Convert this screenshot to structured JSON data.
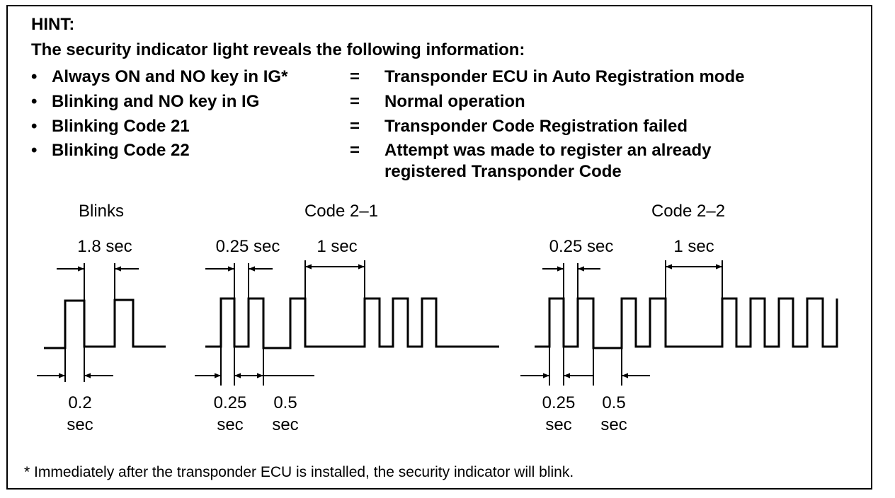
{
  "hint_label": "HINT:",
  "intro": "The security indicator light reveals the following information:",
  "bullet_char": "•",
  "rows": [
    {
      "condition": "Always ON and NO key in IG*",
      "eq": "=",
      "result": "Transponder ECU in Auto Registration mode"
    },
    {
      "condition": "Blinking and NO key in IG",
      "eq": "=",
      "result": "Normal operation"
    },
    {
      "condition": "Blinking Code 21",
      "eq": "=",
      "result": "Transponder Code Registration failed"
    },
    {
      "condition": "Blinking Code 22",
      "eq": "=",
      "result": "Attempt was made to register an already"
    }
  ],
  "row4_continuation": "registered Transponder Code",
  "diagram": {
    "blinks": {
      "title": "Blinks",
      "top_label": "1.8 sec",
      "bottom_label_1": "0.2",
      "bottom_label_2": "sec"
    },
    "code21": {
      "title": "Code 2–1",
      "top_label_a": "0.25 sec",
      "top_label_b": "1 sec",
      "bottom_a_1": "0.25",
      "bottom_a_2": "sec",
      "bottom_b_1": "0.5",
      "bottom_b_2": "sec"
    },
    "code22": {
      "title": "Code 2–2",
      "top_label_a": "0.25 sec",
      "top_label_b": "1 sec",
      "bottom_a_1": "0.25",
      "bottom_a_2": "sec",
      "bottom_b_1": "0.5",
      "bottom_b_2": "sec"
    }
  },
  "footnote": "*  Immediately after the transponder ECU is installed, the security indicator will blink."
}
